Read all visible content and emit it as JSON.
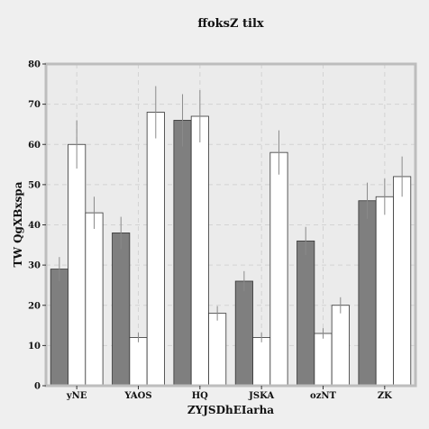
{
  "chart_data": {
    "type": "bar",
    "title": "ffoksZ tilx",
    "xlabel": "ZYJSDhEIarha",
    "ylabel": "TW QgXBxspa",
    "ylim": [
      0,
      80
    ],
    "yticks": [
      0,
      10,
      20,
      30,
      40,
      50,
      60,
      70,
      80
    ],
    "categories": [
      "yNE",
      "YAOS",
      "HQ",
      "JSKA",
      "ozNT",
      "ZK"
    ],
    "grid": true,
    "series": [
      {
        "color": "#7f7f7f",
        "values": [
          29,
          38,
          66,
          26,
          36,
          46
        ],
        "errors": [
          3,
          4,
          6.5,
          2.5,
          3.5,
          4.5
        ]
      },
      {
        "color": "#ffffff",
        "values": [
          60,
          12,
          67,
          12,
          13,
          47
        ],
        "errors": [
          6,
          1.2,
          6.5,
          1.2,
          1.3,
          4.5
        ]
      },
      {
        "color": "#ffffff",
        "values": [
          43,
          68,
          18,
          58,
          20,
          52
        ],
        "errors": [
          4,
          6.5,
          1.8,
          5.5,
          2,
          5
        ]
      }
    ]
  }
}
